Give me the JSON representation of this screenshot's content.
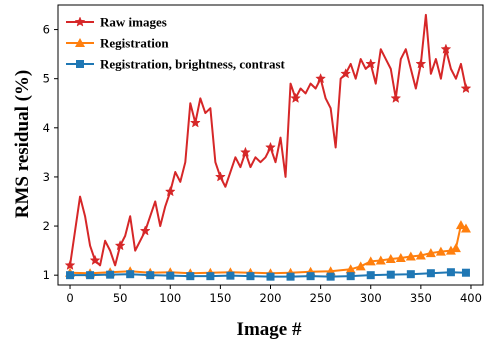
{
  "chart_data": {
    "type": "line",
    "title": "",
    "xlabel": "Image #",
    "ylabel": "RMS residual (%)",
    "xlim": [
      -12,
      412
    ],
    "ylim": [
      0.8,
      6.5
    ],
    "xticks": [
      0,
      50,
      100,
      150,
      200,
      250,
      300,
      350,
      400
    ],
    "yticks": [
      1,
      2,
      3,
      4,
      5,
      6
    ],
    "grid": false,
    "legend_position": "top-left",
    "series": [
      {
        "name": "Raw images",
        "color": "#d62728",
        "marker": "star",
        "x": [
          0,
          5,
          10,
          15,
          20,
          25,
          30,
          35,
          40,
          45,
          50,
          55,
          60,
          65,
          70,
          75,
          80,
          85,
          90,
          95,
          100,
          105,
          110,
          115,
          120,
          125,
          130,
          135,
          140,
          145,
          150,
          155,
          160,
          165,
          170,
          175,
          180,
          185,
          190,
          195,
          200,
          205,
          210,
          215,
          220,
          225,
          230,
          235,
          240,
          245,
          250,
          255,
          260,
          265,
          270,
          275,
          280,
          285,
          290,
          295,
          300,
          305,
          310,
          315,
          320,
          325,
          330,
          335,
          340,
          345,
          350,
          355,
          360,
          365,
          370,
          375,
          380,
          385,
          390,
          395
        ],
        "y": [
          1.2,
          1.9,
          2.6,
          2.2,
          1.6,
          1.3,
          1.2,
          1.7,
          1.5,
          1.2,
          1.6,
          1.8,
          2.2,
          1.5,
          1.7,
          1.9,
          2.2,
          2.5,
          2.0,
          2.4,
          2.7,
          3.1,
          2.9,
          3.3,
          4.5,
          4.1,
          4.6,
          4.3,
          4.4,
          3.3,
          3.0,
          2.8,
          3.1,
          3.4,
          3.2,
          3.5,
          3.2,
          3.4,
          3.3,
          3.4,
          3.6,
          3.3,
          3.8,
          3.0,
          4.9,
          4.6,
          4.8,
          4.7,
          4.9,
          4.8,
          5.0,
          4.6,
          4.4,
          3.6,
          5.0,
          5.1,
          5.3,
          5.0,
          5.4,
          5.2,
          5.3,
          4.9,
          5.6,
          5.4,
          5.2,
          4.6,
          5.4,
          5.6,
          5.2,
          4.8,
          5.3,
          6.3,
          5.1,
          5.4,
          5.0,
          5.6,
          5.2,
          5.0,
          5.3,
          4.8
        ]
      },
      {
        "name": "Registration",
        "color": "#ff7f0e",
        "marker": "triangle",
        "x": [
          0,
          20,
          40,
          60,
          80,
          100,
          120,
          140,
          160,
          180,
          200,
          220,
          240,
          260,
          280,
          290,
          300,
          310,
          320,
          330,
          340,
          350,
          360,
          370,
          380,
          385,
          390,
          395
        ],
        "y": [
          1.05,
          1.04,
          1.06,
          1.08,
          1.05,
          1.06,
          1.04,
          1.05,
          1.06,
          1.05,
          1.04,
          1.05,
          1.07,
          1.08,
          1.12,
          1.18,
          1.28,
          1.3,
          1.33,
          1.35,
          1.38,
          1.4,
          1.45,
          1.48,
          1.5,
          1.55,
          2.02,
          1.95
        ]
      },
      {
        "name": "Registration, brightness, contrast",
        "color": "#1f77b4",
        "marker": "square",
        "x": [
          0,
          20,
          40,
          60,
          80,
          100,
          120,
          140,
          160,
          180,
          200,
          220,
          240,
          260,
          280,
          300,
          320,
          340,
          360,
          380,
          395
        ],
        "y": [
          1.0,
          1.0,
          1.01,
          1.02,
          1.0,
          0.99,
          0.98,
          0.98,
          0.99,
          0.98,
          0.97,
          0.97,
          0.98,
          0.97,
          0.98,
          1.0,
          1.01,
          1.02,
          1.04,
          1.06,
          1.05
        ]
      }
    ]
  }
}
